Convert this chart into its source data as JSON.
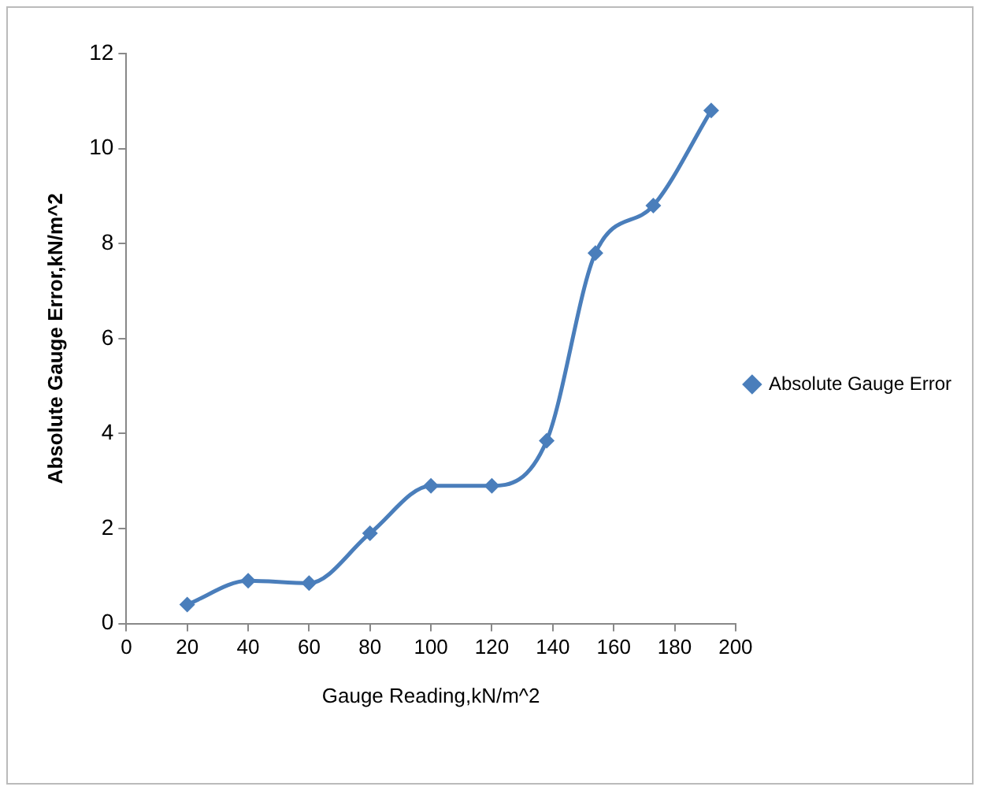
{
  "chart_data": {
    "type": "line",
    "xlabel": "Gauge Reading,kN/m^2",
    "ylabel": "Absolute Gauge Error,kN/m^2",
    "x": [
      20,
      40,
      60,
      80,
      100,
      120,
      138,
      154,
      173,
      192
    ],
    "series": [
      {
        "name": "Absolute Gauge Error",
        "color": "#4a7ebb",
        "values": [
          0.4,
          0.9,
          0.85,
          1.9,
          2.9,
          2.9,
          3.85,
          7.8,
          8.8,
          10.8
        ]
      }
    ],
    "xlim": [
      0,
      200
    ],
    "xticks": [
      0,
      20,
      40,
      60,
      80,
      100,
      120,
      140,
      160,
      180,
      200
    ],
    "ylim": [
      0,
      12
    ],
    "yticks": [
      0,
      2,
      4,
      6,
      8,
      10,
      12
    ],
    "grid": false,
    "legend": "right",
    "marker": "diamond",
    "line_style": "solid"
  }
}
